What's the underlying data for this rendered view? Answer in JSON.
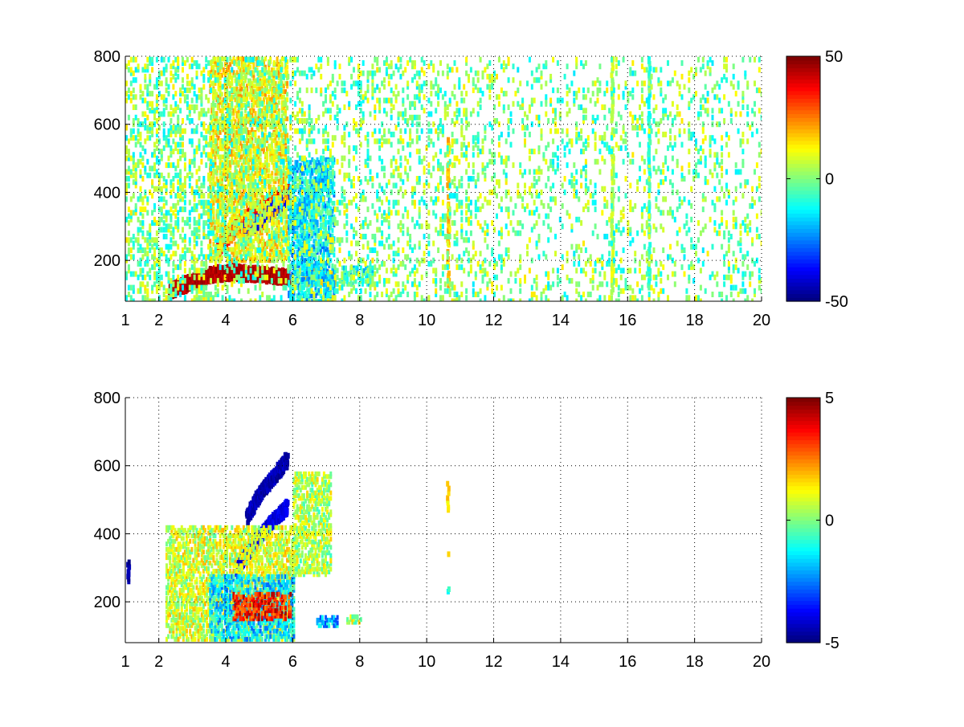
{
  "chart_data": [
    {
      "type": "heatmap",
      "colormap": "jet",
      "grid": true,
      "xlim": [
        1,
        20
      ],
      "ylim": [
        80,
        800
      ],
      "x_ticks": [
        "1",
        "2",
        "4",
        "6",
        "8",
        "10",
        "12",
        "14",
        "16",
        "18",
        "20"
      ],
      "x_tick_values": [
        1,
        2,
        4,
        6,
        8,
        10,
        12,
        14,
        16,
        18,
        20
      ],
      "y_ticks": [
        "200",
        "400",
        "600",
        "800"
      ],
      "y_tick_values": [
        200,
        400,
        600,
        800
      ],
      "clim": [
        -50,
        50
      ],
      "colorbar_ticks": [
        "50",
        "0",
        "-50"
      ],
      "colorbar_tick_values": [
        50,
        0,
        -50
      ],
      "features": [
        {
          "kind": "ridge",
          "x": [
            2.3,
            3.0,
            3.6,
            4.2,
            4.8,
            5.4,
            5.85
          ],
          "y": [
            110,
            140,
            160,
            165,
            160,
            155,
            150
          ],
          "value": 45
        },
        {
          "kind": "ridge",
          "x": [
            3.7,
            4.0,
            4.4,
            4.8,
            5.2,
            5.6,
            5.85
          ],
          "y": [
            230,
            270,
            310,
            340,
            365,
            385,
            400
          ],
          "value": 38
        },
        {
          "kind": "ridge",
          "x": [
            4.5,
            5.0,
            5.5,
            5.85
          ],
          "y": [
            280,
            320,
            360,
            390
          ],
          "value": -38
        },
        {
          "kind": "ridge",
          "x": [
            5.9,
            6.3,
            6.7,
            7.0
          ],
          "y": [
            300,
            360,
            420,
            460
          ],
          "value": -22
        },
        {
          "kind": "ridge",
          "x": [
            6.3,
            6.8,
            7.2
          ],
          "y": [
            150,
            150,
            145
          ],
          "value": 15
        },
        {
          "kind": "blob",
          "x": [
            3.5,
            5.8
          ],
          "y": [
            200,
            800
          ],
          "value": 12
        },
        {
          "kind": "blob",
          "x": [
            5.85,
            7.2
          ],
          "y": [
            80,
            500
          ],
          "value": -15
        },
        {
          "kind": "blob",
          "x": [
            7.4,
            8.4
          ],
          "y": [
            130,
            180
          ],
          "value": -10
        },
        {
          "kind": "column",
          "x": 10.6,
          "y": [
            120,
            560
          ],
          "value": 18
        },
        {
          "kind": "column",
          "x": 15.5,
          "y": [
            100,
            800
          ],
          "value": 6
        },
        {
          "kind": "column",
          "x": 16.6,
          "y": [
            120,
            800
          ],
          "value": -8
        },
        {
          "kind": "noise",
          "x": [
            1,
            20
          ],
          "y": [
            80,
            800
          ],
          "value_range": [
            -15,
            15
          ]
        }
      ]
    },
    {
      "type": "heatmap",
      "colormap": "jet",
      "grid": true,
      "xlim": [
        1,
        20
      ],
      "ylim": [
        80,
        800
      ],
      "x_ticks": [
        "1",
        "2",
        "4",
        "6",
        "8",
        "10",
        "12",
        "14",
        "16",
        "18",
        "20"
      ],
      "x_tick_values": [
        1,
        2,
        4,
        6,
        8,
        10,
        12,
        14,
        16,
        18,
        20
      ],
      "y_ticks": [
        "200",
        "400",
        "600",
        "800"
      ],
      "y_tick_values": [
        200,
        400,
        600,
        800
      ],
      "clim": [
        -5,
        5
      ],
      "colorbar_ticks": [
        "5",
        "0",
        "-5"
      ],
      "colorbar_tick_values": [
        5,
        0,
        -5
      ],
      "features": [
        {
          "kind": "ridge",
          "x": [
            4.3,
            4.8,
            5.3,
            5.8
          ],
          "y": [
            300,
            370,
            430,
            480
          ],
          "value": -4
        },
        {
          "kind": "ridge",
          "x": [
            4.6,
            5.0,
            5.5,
            5.8
          ],
          "y": [
            450,
            520,
            580,
            620
          ],
          "value": -4.5
        },
        {
          "kind": "blob",
          "x": [
            2.2,
            6.0
          ],
          "y": [
            90,
            420
          ],
          "value": 0.8
        },
        {
          "kind": "blob",
          "x": [
            3.5,
            6.0
          ],
          "y": [
            90,
            280
          ],
          "value": -1.5
        },
        {
          "kind": "blob",
          "x": [
            4.2,
            5.9
          ],
          "y": [
            150,
            230
          ],
          "value": 3.5
        },
        {
          "kind": "blob",
          "x": [
            6.0,
            7.1
          ],
          "y": [
            280,
            580
          ],
          "value": 0.5
        },
        {
          "kind": "blob",
          "x": [
            6.7,
            7.3
          ],
          "y": [
            130,
            160
          ],
          "value": -2
        },
        {
          "kind": "blob",
          "x": [
            7.6,
            8.0
          ],
          "y": [
            140,
            160
          ],
          "value": 0.5
        },
        {
          "kind": "column",
          "x": 10.6,
          "y": [
            470,
            550
          ],
          "value": 1.5
        },
        {
          "kind": "column",
          "x": 10.6,
          "y": [
            340,
            350
          ],
          "value": 2
        },
        {
          "kind": "column",
          "x": 10.6,
          "y": [
            230,
            240
          ],
          "value": -1
        },
        {
          "kind": "column",
          "x": 1.05,
          "y": [
            260,
            320
          ],
          "value": -4.5
        }
      ]
    }
  ]
}
